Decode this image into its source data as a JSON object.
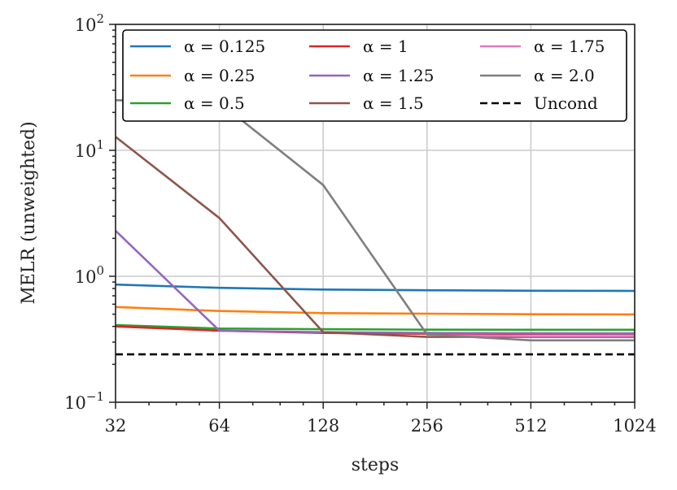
{
  "chart_data": {
    "type": "line",
    "title": "",
    "xlabel": "steps",
    "ylabel": "MELR (unweighted)",
    "xscale": "log2",
    "yscale": "log10",
    "xlim": [
      32,
      1024
    ],
    "ylim": [
      0.1,
      100
    ],
    "grid": true,
    "legend_position": "top",
    "legend_columns": 3,
    "x": [
      32,
      64,
      128,
      256,
      512,
      1024
    ],
    "x_tick_labels": [
      "32",
      "64",
      "128",
      "256",
      "512",
      "1024"
    ],
    "y_ticks": [
      {
        "value": 0.1,
        "base": "10",
        "exp": "−1"
      },
      {
        "value": 1,
        "base": "10",
        "exp": "0"
      },
      {
        "value": 10,
        "base": "10",
        "exp": "1"
      },
      {
        "value": 100,
        "base": "10",
        "exp": "2"
      }
    ],
    "series": [
      {
        "name": "α = 0.125",
        "color": "#1f77b4",
        "dashed": false,
        "values": [
          0.86,
          0.81,
          0.785,
          0.775,
          0.768,
          0.765
        ]
      },
      {
        "name": "α = 0.25",
        "color": "#ff7f0e",
        "dashed": false,
        "values": [
          0.57,
          0.53,
          0.51,
          0.505,
          0.5,
          0.498
        ]
      },
      {
        "name": "α = 0.5",
        "color": "#2ca02c",
        "dashed": false,
        "values": [
          0.41,
          0.385,
          0.38,
          0.377,
          0.376,
          0.376
        ]
      },
      {
        "name": "α = 1",
        "color": "#d62728",
        "dashed": false,
        "values": [
          0.4,
          0.37,
          0.355,
          0.35,
          0.35,
          0.35
        ]
      },
      {
        "name": "α = 1.25",
        "color": "#9467bd",
        "dashed": false,
        "values": [
          2.3,
          0.37,
          0.36,
          0.355,
          0.353,
          0.352
        ]
      },
      {
        "name": "α = 1.5",
        "color": "#8c564b",
        "dashed": false,
        "values": [
          12.8,
          2.9,
          0.36,
          0.33,
          0.33,
          0.33
        ]
      },
      {
        "name": "α = 1.75",
        "color": "#e377c2",
        "dashed": false,
        "values": [
          null,
          null,
          null,
          0.34,
          0.335,
          0.335
        ]
      },
      {
        "name": "α = 2.0",
        "color": "#7f7f7f",
        "dashed": false,
        "values": [
          25,
          24,
          5.3,
          0.345,
          0.31,
          0.31
        ]
      },
      {
        "name": "Uncond",
        "color": "#000000",
        "dashed": true,
        "values": [
          0.24,
          0.24,
          0.24,
          0.24,
          0.24,
          0.24
        ]
      }
    ]
  }
}
